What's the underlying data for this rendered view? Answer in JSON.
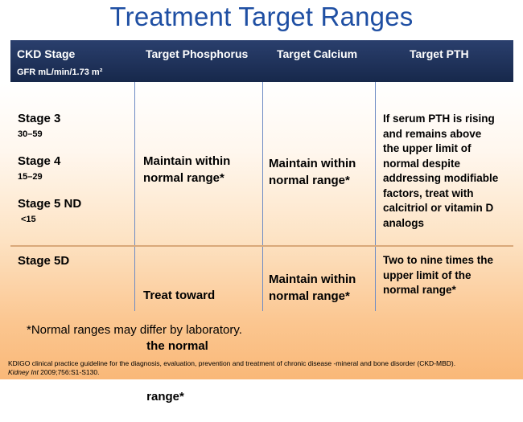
{
  "title": "Treatment Target Ranges",
  "header": {
    "ckd_stage": "CKD Stage",
    "gfr_label": "GFR  mL/min/1.73 m²",
    "phosphorus": "Target Phosphorus",
    "calcium": "Target Calcium",
    "pth": "Target PTH"
  },
  "rows": [
    {
      "stages": [
        {
          "name": "Stage 3",
          "range": "30–59"
        },
        {
          "name": "Stage 4",
          "range": "15–29"
        },
        {
          "name": "Stage 5 ND",
          "range": "<15"
        }
      ],
      "phosphorus": [
        "Maintain within",
        "normal range*"
      ],
      "calcium": [
        "Maintain within",
        "normal range*"
      ],
      "pth": [
        "If serum PTH is rising",
        "and remains above",
        "the upper limit of",
        "normal despite",
        "addressing modifiable",
        "factors, treat with",
        "calcitriol or vitamin D",
        "analogs"
      ]
    },
    {
      "stages": [
        {
          "name": "Stage 5D"
        }
      ],
      "phosphorus": [
        "Treat toward",
        " the normal",
        " range*"
      ],
      "calcium": [
        "Maintain within",
        "normal range*"
      ],
      "pth": [
        "Two to nine times the",
        "upper limit of the",
        "normal range*"
      ]
    }
  ],
  "footnote": "*Normal ranges may differ by laboratory.",
  "citation": {
    "line1": "KDIGO clinical practice guideline for the diagnosis, evaluation, prevention and treatment of chronic disease -mineral and bone disorder (CKD-MBD).",
    "journal": "Kidney Int",
    "line2_rest": " 2009;756:S1-S130."
  }
}
